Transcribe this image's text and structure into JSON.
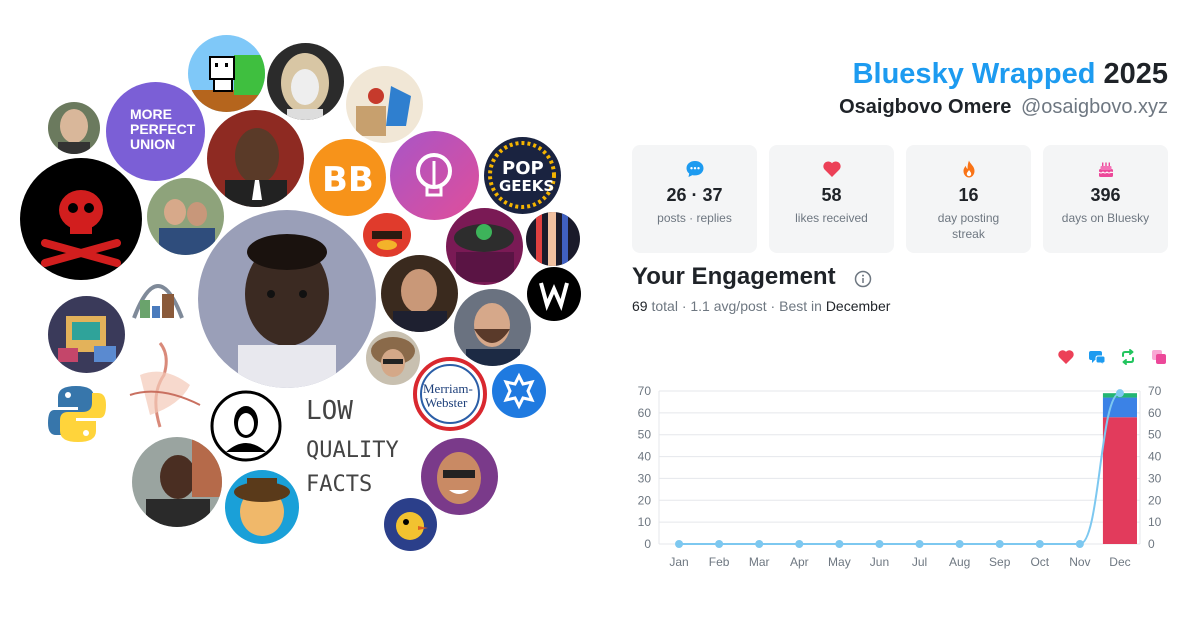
{
  "header": {
    "brand": "Bluesky Wrapped",
    "year": "2025",
    "display_name": "Osaigbovo Omere",
    "handle": "@osaigbovo.xyz"
  },
  "stats": [
    {
      "icon": "chat-bubble-icon",
      "value": "26 · 37",
      "label": "posts · replies",
      "color": "#1d9bf0"
    },
    {
      "icon": "heart-icon",
      "value": "58",
      "label": "likes received",
      "color": "#ec4057"
    },
    {
      "icon": "flame-icon",
      "value": "16",
      "label": "day posting streak",
      "color": "#f97316"
    },
    {
      "icon": "cake-icon",
      "value": "396",
      "label": "days on Bluesky",
      "color": "#ec4899"
    }
  ],
  "engagement": {
    "title": "Your Engagement",
    "total_value": "69",
    "total_word": "total",
    "avg": "· 1.1 avg/post ·",
    "best_word": "Best in",
    "best_month": "December",
    "legend_icons": [
      "heart-icon",
      "reply-icon",
      "repost-icon",
      "quote-icon"
    ],
    "legend_colors": [
      "#ec4057",
      "#1d9bf0",
      "#22c55e",
      "#ec4899"
    ]
  },
  "avatar_cluster": {
    "art_text": [
      "LOW",
      "QUALITY",
      "FACTS"
    ],
    "badge_text": [
      "MORE",
      "PERFECT",
      "UNION"
    ],
    "pop_text": [
      "POP",
      "GEEKS"
    ],
    "mw_text": [
      "Merriam-",
      "Webster"
    ],
    "crypto_text": "BB"
  },
  "chart_data": {
    "type": "bar",
    "categories": [
      "Jan",
      "Feb",
      "Mar",
      "Apr",
      "May",
      "Jun",
      "Jul",
      "Aug",
      "Sep",
      "Oct",
      "Nov",
      "Dec"
    ],
    "series": [
      {
        "values": [
          0,
          0,
          0,
          0,
          0,
          0,
          0,
          0,
          0,
          0,
          0,
          58
        ],
        "color": "#e23b5c"
      },
      {
        "values": [
          0,
          0,
          0,
          0,
          0,
          0,
          0,
          0,
          0,
          0,
          0,
          9
        ],
        "color": "#3b82e6"
      },
      {
        "values": [
          0,
          0,
          0,
          0,
          0,
          0,
          0,
          0,
          0,
          0,
          0,
          2
        ],
        "color": "#22b573"
      }
    ],
    "line": {
      "values": [
        0,
        0,
        0,
        0,
        0,
        0,
        0,
        0,
        0,
        0,
        0,
        69
      ],
      "color": "#7dc8f0"
    },
    "ylim": [
      0,
      70
    ],
    "yticks": [
      0,
      10,
      20,
      30,
      40,
      50,
      60,
      70
    ],
    "grid": true,
    "dual_axis": true
  }
}
